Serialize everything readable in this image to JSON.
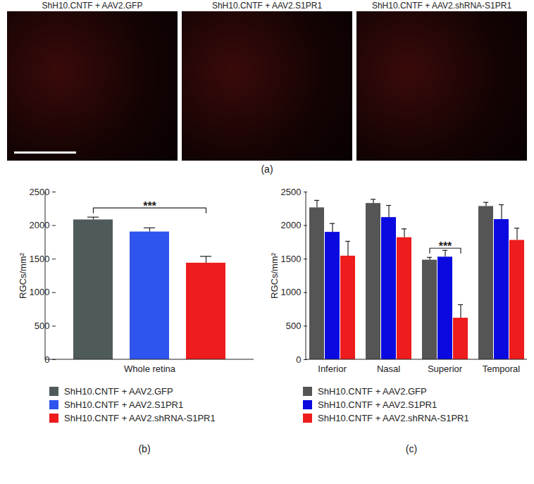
{
  "images": {
    "label": "(a)",
    "titles": [
      "ShH10.CNTF + AAV2.GFP",
      "ShH10.CNTF + AAV2.S1PR1",
      "ShH10.CNTF + AAV2.shRNA-S1PR1"
    ]
  },
  "chart_data": [
    {
      "type": "bar",
      "caption": "(b)",
      "y_label": "RGCs/mm²",
      "categories": [
        "Whole retina"
      ],
      "series": [
        {
          "name": "ShH10.CNTF + AAV2.GFP",
          "color": "#4f5b5b",
          "values": [
            2085
          ],
          "errors": [
            40
          ]
        },
        {
          "name": "ShH10.CNTF + AAV2.S1PR1",
          "color": "#2f55ee",
          "values": [
            1905
          ],
          "errors": [
            60
          ]
        },
        {
          "name": "ShH10.CNTF + AAV2.shRNA-S1PR1",
          "color": "#ee1c1c",
          "values": [
            1440
          ],
          "errors": [
            100
          ]
        }
      ],
      "ylim": [
        0,
        2500
      ],
      "yticks": [
        0,
        500,
        1000,
        1500,
        2000,
        2500
      ],
      "annotations": [
        {
          "text": "***",
          "category": "Whole retina",
          "from": "ShH10.CNTF + AAV2.GFP",
          "to": "ShH10.CNTF + AAV2.shRNA-S1PR1"
        }
      ]
    },
    {
      "type": "bar",
      "caption": "(c)",
      "y_label": "RGCs/mm²",
      "categories": [
        "Inferior",
        "Nasal",
        "Superior",
        "Temporal"
      ],
      "series": [
        {
          "name": "ShH10.CNTF + AAV2.GFP",
          "color": "#555555",
          "values": [
            2265,
            2330,
            1485,
            2285
          ],
          "errors": [
            110,
            60,
            40,
            60
          ]
        },
        {
          "name": "ShH10.CNTF + AAV2.S1PR1",
          "color": "#0a0ae0",
          "values": [
            1900,
            2120,
            1530,
            2090
          ],
          "errors": [
            130,
            180,
            100,
            220
          ]
        },
        {
          "name": "ShH10.CNTF + AAV2.shRNA-S1PR1",
          "color": "#ee1c1c",
          "values": [
            1545,
            1820,
            620,
            1780
          ],
          "errors": [
            220,
            130,
            200,
            180
          ]
        }
      ],
      "ylim": [
        0,
        2500
      ],
      "yticks": [
        0,
        500,
        1000,
        1500,
        2000,
        2500
      ],
      "annotations": [
        {
          "text": "***",
          "category": "Superior",
          "from": "ShH10.CNTF + AAV2.GFP",
          "to": "ShH10.CNTF + AAV2.shRNA-S1PR1"
        }
      ]
    }
  ]
}
